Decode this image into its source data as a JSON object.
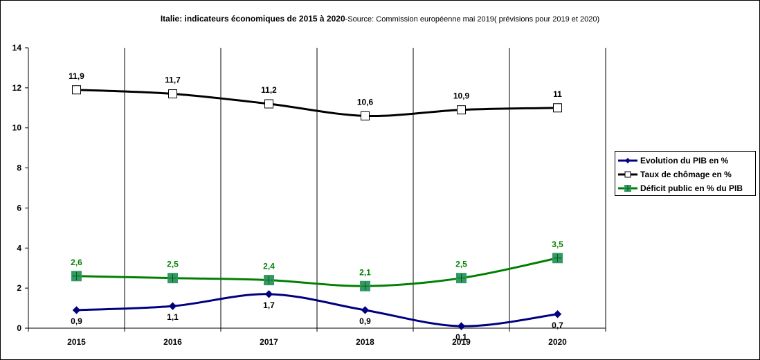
{
  "title": "Italie: indicateurs économiques de 2015 à 2020",
  "subtitle": "-Source: Commission européenne mai 2019( prévisions pour 2019 et 2020)",
  "chart_data": {
    "type": "line",
    "categories": [
      "2015",
      "2016",
      "2017",
      "2018",
      "2019",
      "2020"
    ],
    "ylim": [
      0,
      14
    ],
    "yticks": [
      "0",
      "2",
      "4",
      "6",
      "8",
      "10",
      "12",
      "14"
    ],
    "grid": "vertical lines between categories",
    "legend_position": "right",
    "series": [
      {
        "name": "Evolution du PIB en %",
        "values": [
          0.9,
          1.1,
          1.7,
          0.9,
          0.1,
          0.7
        ],
        "labels": [
          "0,9",
          "1,1",
          "1,7",
          "0,9",
          "0,1",
          "0,7"
        ],
        "label_position": "below",
        "color": "#000080",
        "marker": "diamond"
      },
      {
        "name": "Taux de chômage en %",
        "values": [
          11.9,
          11.7,
          11.2,
          10.6,
          10.9,
          11
        ],
        "labels": [
          "11,9",
          "11,7",
          "11,2",
          "10,6",
          "10,9",
          "11"
        ],
        "label_position": "above",
        "color": "#000000",
        "marker": "open-square"
      },
      {
        "name": "Déficit public en % du PIB",
        "values": [
          2.6,
          2.5,
          2.4,
          2.1,
          2.5,
          3.5
        ],
        "labels": [
          "2,6",
          "2,5",
          "2,4",
          "2,1",
          "2,5",
          "3,5"
        ],
        "label_position": "above",
        "color": "#008000",
        "marker": "filled-square-plus"
      }
    ]
  }
}
